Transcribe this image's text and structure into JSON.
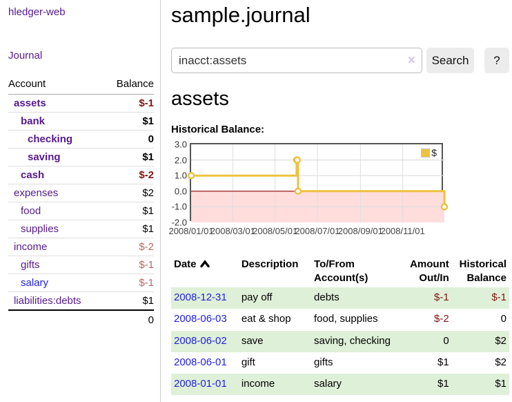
{
  "colors": {
    "link_purple": "#551a8b",
    "link_blue": "#2222dd",
    "negative_strong": "#801515",
    "negative_dim": "#bb6666",
    "row_stripe_green": "#dff0d8",
    "button_gray": "#ececec"
  },
  "sidebar": {
    "brand": "hledger-web",
    "nav": {
      "journal": "Journal"
    },
    "accounts": {
      "header": {
        "account": "Account",
        "balance": "Balance"
      },
      "rows": [
        {
          "name": "assets",
          "balance": "$-1",
          "level": 1,
          "bold": true
        },
        {
          "name": "bank",
          "balance": "$1",
          "level": 2,
          "bold": true
        },
        {
          "name": "checking",
          "balance": "0",
          "level": 3,
          "bold": true
        },
        {
          "name": "saving",
          "balance": "$1",
          "level": 3,
          "bold": true
        },
        {
          "name": "cash",
          "balance": "$-2",
          "level": 2,
          "bold": true
        },
        {
          "name": "expenses",
          "balance": "$2",
          "level": 1,
          "bold": false
        },
        {
          "name": "food",
          "balance": "$1",
          "level": 2,
          "bold": false
        },
        {
          "name": "supplies",
          "balance": "$1",
          "level": 2,
          "bold": false
        },
        {
          "name": "income",
          "balance": "$-2",
          "level": 1,
          "bold": false
        },
        {
          "name": "gifts",
          "balance": "$-1",
          "level": 2,
          "bold": false
        },
        {
          "name": "salary",
          "balance": "$-1",
          "level": 2,
          "bold": false,
          "link_color": "blue"
        },
        {
          "name": "liabilities:debts",
          "balance": "$1",
          "level": 1,
          "bold": false
        }
      ],
      "total": "0"
    }
  },
  "main": {
    "title": "sample.journal",
    "search": {
      "query": "inacct:assets",
      "clear_icon": "×",
      "button": "Search",
      "help": "?"
    },
    "account_heading": "assets",
    "chart_heading": "Historical Balance:"
  },
  "chart_data": {
    "type": "line",
    "steps": true,
    "title": "Historical Balance",
    "xlim": [
      "2008-01-01",
      "2008-12-31"
    ],
    "ylim": [
      -2.0,
      3.0
    ],
    "y_ticks": [
      3.0,
      2.0,
      1.0,
      0.0,
      -1.0,
      -2.0
    ],
    "x_ticks": [
      {
        "date": "2008-01-01",
        "label": "2008/01/01"
      },
      {
        "date": "2008-03-01",
        "label": "2008/03/01"
      },
      {
        "date": "2008-05-01",
        "label": "2008/05/01"
      },
      {
        "date": "2008-07-01",
        "label": "2008/07/01"
      },
      {
        "date": "2008-09-01",
        "label": "2008/09/01"
      },
      {
        "date": "2008-11-01",
        "label": "2008/11/01"
      }
    ],
    "series": [
      {
        "name": "$",
        "color": "#edc240",
        "points": [
          {
            "date": "2008-01-01",
            "value": 1
          },
          {
            "date": "2008-06-01",
            "value": 2
          },
          {
            "date": "2008-06-02",
            "value": 2
          },
          {
            "date": "2008-06-03",
            "value": 0
          },
          {
            "date": "2008-12-31",
            "value": -1
          }
        ]
      }
    ],
    "grid": true,
    "legend_position": "top-right",
    "grid_color": "#dddddd",
    "zero_line_color": "#8b0000",
    "negative_region_color": "#ffdddd",
    "border_color": "#545454"
  },
  "transactions": {
    "headers": [
      "Date",
      "Description",
      "To/From Account(s)",
      "Amount Out/In",
      "Historical Balance"
    ],
    "rows": [
      {
        "date": "2008-12-31",
        "description": "pay off",
        "accounts": "debts",
        "amount": "$-1",
        "balance": "$-1"
      },
      {
        "date": "2008-06-03",
        "description": "eat & shop",
        "accounts": "food, supplies",
        "amount": "$-2",
        "balance": "0"
      },
      {
        "date": "2008-06-02",
        "description": "save",
        "accounts": "saving, checking",
        "amount": "0",
        "balance": "$2"
      },
      {
        "date": "2008-06-01",
        "description": "gift",
        "accounts": "gifts",
        "amount": "$1",
        "balance": "$2"
      },
      {
        "date": "2008-01-01",
        "description": "income",
        "accounts": "salary",
        "amount": "$1",
        "balance": "$1"
      }
    ]
  }
}
